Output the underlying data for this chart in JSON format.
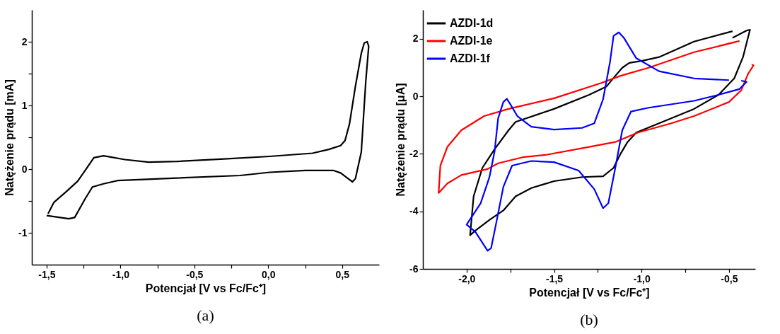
{
  "chart_data": [
    {
      "type": "line",
      "xlabel": "Potencjał [V vs Fc/Fc⁺]",
      "ylabel": "Natężenie prądu [mA]",
      "annotations": [
        "(a)"
      ],
      "xlim": [
        -1.6,
        0.75
      ],
      "ylim": [
        -1.5,
        2.5
      ],
      "xticks": [
        {
          "value": -1.5,
          "label": "-1,5"
        },
        {
          "value": -1.25,
          "label": null
        },
        {
          "value": -1.0,
          "label": "-1,0"
        },
        {
          "value": -0.75,
          "label": null
        },
        {
          "value": -0.5,
          "label": "-0,5"
        },
        {
          "value": -0.25,
          "label": null
        },
        {
          "value": 0.0,
          "label": "0,0"
        },
        {
          "value": 0.25,
          "label": null
        },
        {
          "value": 0.5,
          "label": "0,5"
        }
      ],
      "yticks": [
        -1,
        {
          "value": -0.5,
          "label": null
        },
        0,
        {
          "value": 0.5,
          "label": null
        },
        1,
        {
          "value": 1.5,
          "label": null
        },
        2
      ],
      "grid": false,
      "series": [
        {
          "color": "#000000",
          "x": [
            -1.5,
            -1.35,
            -1.31,
            -1.24,
            -1.19,
            -1.115,
            -1.02,
            -0.62,
            -0.19,
            0.01,
            0.25,
            0.44,
            0.49,
            0.57,
            0.59,
            0.63,
            0.66,
            0.68,
            0.67,
            0.65,
            0.63,
            0.59,
            0.55,
            0.52,
            0.49,
            0.41,
            0.3,
            0.01,
            -0.3,
            -0.62,
            -0.81,
            -0.97,
            -1.115,
            -1.18,
            -1.23,
            -1.29,
            -1.37,
            -1.45,
            -1.49
          ],
          "values": [
            -0.73,
            -0.78,
            -0.76,
            -0.47,
            -0.28,
            -0.23,
            -0.18,
            -0.14,
            -0.1,
            -0.05,
            -0.02,
            -0.02,
            -0.06,
            -0.2,
            -0.15,
            0.27,
            1.37,
            1.93,
            2.0,
            1.98,
            1.82,
            1.3,
            0.71,
            0.45,
            0.37,
            0.31,
            0.25,
            0.2,
            0.16,
            0.12,
            0.11,
            0.15,
            0.21,
            0.18,
            0.01,
            -0.19,
            -0.36,
            -0.52,
            -0.7
          ]
        }
      ]
    },
    {
      "type": "line",
      "xlabel": "Potencjał [V vs Fc/Fc⁺]",
      "ylabel": "Natężenie prądu [μA]",
      "annotations": [
        "(b)"
      ],
      "xlim": [
        -2.25,
        -0.35
      ],
      "ylim": [
        -6,
        3
      ],
      "xticks": [
        {
          "value": -2.0,
          "label": "-2,0"
        },
        {
          "value": -1.75,
          "label": null
        },
        {
          "value": -1.5,
          "label": "-1,5"
        },
        {
          "value": -1.25,
          "label": null
        },
        {
          "value": -1.0,
          "label": "-1,0"
        },
        {
          "value": -0.75,
          "label": null
        },
        {
          "value": -0.5,
          "label": "-0,5"
        }
      ],
      "yticks": [
        -6,
        -4,
        -2,
        0,
        2
      ],
      "grid": false,
      "legend": "top left",
      "series": [
        {
          "name": "AZDI-1d",
          "color": "#000000",
          "x": [
            -0.48,
            -0.7,
            -0.9,
            -0.99,
            -1.07,
            -1.11,
            -1.15,
            -1.2,
            -1.3,
            -1.5,
            -1.66,
            -1.72,
            -1.76,
            -1.84,
            -1.91,
            -1.96,
            -1.98,
            -1.95,
            -1.87,
            -1.79,
            -1.72,
            -1.63,
            -1.5,
            -1.34,
            -1.22,
            -1.16,
            -1.12,
            -1.08,
            -1.03,
            -0.9,
            -0.7,
            -0.56,
            -0.47,
            -0.42,
            -0.38,
            -0.4,
            -0.48
          ],
          "values": [
            2.26,
            1.9,
            1.36,
            1.24,
            1.16,
            0.99,
            0.71,
            0.34,
            0.05,
            -0.44,
            -0.77,
            -0.89,
            -1.18,
            -1.84,
            -2.49,
            -3.48,
            -4.83,
            -4.67,
            -4.3,
            -3.97,
            -3.48,
            -3.19,
            -2.95,
            -2.81,
            -2.78,
            -2.49,
            -2.0,
            -1.59,
            -1.26,
            -0.94,
            -0.44,
            0.05,
            0.62,
            1.36,
            2.31,
            2.28,
            2.03
          ]
        },
        {
          "name": "AZDI-1e",
          "color": "#ff0000",
          "x": [
            -0.44,
            -0.7,
            -0.96,
            -1.12,
            -1.23,
            -1.5,
            -1.76,
            -1.9,
            -2.03,
            -2.11,
            -2.15,
            -2.16,
            -2.11,
            -2.03,
            -1.88,
            -1.82,
            -1.68,
            -1.55,
            -1.3,
            -1.15,
            -1.02,
            -0.83,
            -0.7,
            -0.5,
            -0.43,
            -0.39,
            -0.36,
            -0.37
          ],
          "values": [
            1.92,
            1.53,
            0.99,
            0.71,
            0.46,
            -0.07,
            -0.44,
            -0.69,
            -1.18,
            -1.76,
            -2.41,
            -3.36,
            -3.03,
            -2.74,
            -2.53,
            -2.33,
            -2.12,
            -2.04,
            -1.76,
            -1.59,
            -1.26,
            -0.94,
            -0.69,
            -0.2,
            0.21,
            0.79,
            1.07,
            1.1
          ]
        },
        {
          "name": "AZDI-1f",
          "color": "#0000ff",
          "x": [
            -0.5,
            -0.7,
            -0.9,
            -1.03,
            -1.1,
            -1.13,
            -1.16,
            -1.18,
            -1.22,
            -1.27,
            -1.34,
            -1.5,
            -1.63,
            -1.71,
            -1.75,
            -1.77,
            -1.79,
            -1.82,
            -1.84,
            -1.87,
            -1.92,
            -2.0,
            -1.95,
            -1.88,
            -1.86,
            -1.83,
            -1.79,
            -1.74,
            -1.63,
            -1.5,
            -1.36,
            -1.27,
            -1.22,
            -1.19,
            -1.15,
            -1.11,
            -1.06,
            -0.96,
            -0.7,
            -0.56,
            -0.44,
            -0.4,
            -0.43
          ],
          "values": [
            0.56,
            0.62,
            0.87,
            1.32,
            2.02,
            2.22,
            2.1,
            1.2,
            -0.11,
            -0.94,
            -1.1,
            -1.16,
            -1.06,
            -0.69,
            -0.28,
            -0.09,
            -0.2,
            -0.77,
            -1.92,
            -2.82,
            -3.72,
            -4.46,
            -4.71,
            -5.37,
            -5.28,
            -4.38,
            -3.15,
            -2.41,
            -2.25,
            -2.29,
            -2.58,
            -3.23,
            -3.89,
            -3.72,
            -2.49,
            -1.18,
            -0.53,
            -0.4,
            -0.16,
            0.05,
            0.25,
            0.5,
            0.54
          ]
        }
      ]
    }
  ]
}
